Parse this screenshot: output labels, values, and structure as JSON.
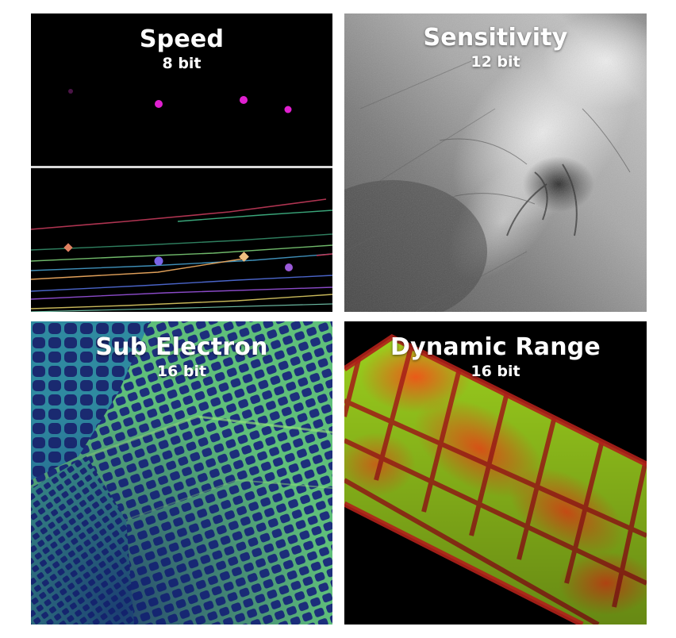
{
  "panels": [
    {
      "title": "Speed",
      "subtitle": "8 bit"
    },
    {
      "title": "Sensitivity",
      "subtitle": "12 bit"
    },
    {
      "title": "Sub Electron",
      "subtitle": "16 bit"
    },
    {
      "title": "Dynamic Range",
      "subtitle": "16 bit"
    }
  ],
  "colors": {
    "speed_background": "#000000",
    "speed_divider": "#d8d8d8",
    "speed_particle": "#e020d0",
    "sensitivity_tone": "#9a9a9a",
    "sub_electron_dark": "#1b2f7a",
    "sub_electron_bright": "#7fd36a",
    "dynamic_green": "#a8e020",
    "dynamic_red": "#ff4a1a"
  }
}
